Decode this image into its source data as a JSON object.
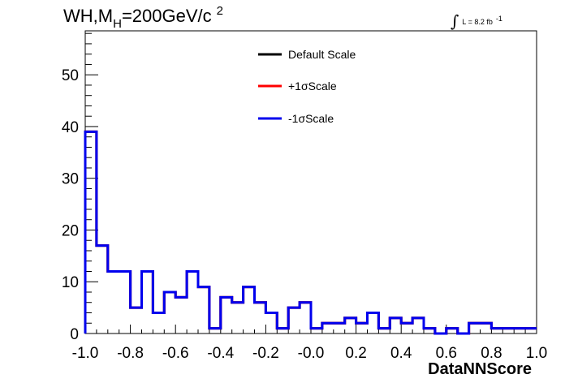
{
  "chart_data": {
    "type": "histogram",
    "title": {
      "main": "WH,M",
      "subscript": "H",
      "value": "=200GeV/c",
      "superscript": "2"
    },
    "luminosity": {
      "integral_symbol": "∫",
      "text": "L = 8.2 fb",
      "superscript": "-1"
    },
    "xlabel": "DataNNScore",
    "ylabel": "",
    "xlim": [
      -1.0,
      1.0
    ],
    "ylim": [
      0,
      58.5
    ],
    "x_ticks": [
      -1.0,
      -0.8,
      -0.6,
      -0.4,
      -0.2,
      0.0,
      0.2,
      0.4,
      0.6,
      0.8,
      1.0
    ],
    "x_tick_labels": [
      "-1.0",
      "-0.8",
      "-0.6",
      "-0.4",
      "-0.2",
      "-0.0",
      "0.2",
      "0.4",
      "0.6",
      "0.8",
      "1.0"
    ],
    "y_ticks": [
      0,
      10,
      20,
      30,
      40,
      50
    ],
    "y_tick_labels": [
      "0",
      "10",
      "20",
      "30",
      "40",
      "50"
    ],
    "bin_edges": [
      -1.0,
      -0.95,
      -0.9,
      -0.85,
      -0.8,
      -0.75,
      -0.7,
      -0.65,
      -0.6,
      -0.55,
      -0.5,
      -0.45,
      -0.4,
      -0.35,
      -0.3,
      -0.25,
      -0.2,
      -0.15,
      -0.1,
      -0.05,
      0.0,
      0.05,
      0.1,
      0.15,
      0.2,
      0.25,
      0.3,
      0.35,
      0.4,
      0.45,
      0.5,
      0.55,
      0.6,
      0.65,
      0.7,
      0.75,
      0.8,
      0.85,
      0.9,
      0.95,
      1.0
    ],
    "series": [
      {
        "name": "Default Scale",
        "color": "#000000",
        "values": [
          39,
          17,
          12,
          12,
          5,
          12,
          4,
          8,
          7,
          12,
          9,
          1,
          7,
          6,
          9,
          6,
          4,
          1,
          5,
          6,
          1,
          2,
          2,
          3,
          2,
          4,
          1,
          3,
          2,
          3,
          1,
          0,
          1,
          0,
          2,
          2,
          1,
          1,
          1,
          1
        ]
      },
      {
        "name": "+1σScale",
        "color": "#ff0000",
        "values": [
          39,
          17,
          12,
          12,
          5,
          12,
          4,
          8,
          7,
          12,
          9,
          1,
          7,
          6,
          9,
          6,
          4,
          1,
          5,
          6,
          1,
          2,
          2,
          3,
          2,
          4,
          1,
          3,
          2,
          3,
          1,
          0,
          1,
          0,
          2,
          2,
          1,
          1,
          1,
          1
        ]
      },
      {
        "name": "-1σScale",
        "color": "#0000ee",
        "values": [
          39,
          17,
          12,
          12,
          5,
          12,
          4,
          8,
          7,
          12,
          9,
          1,
          7,
          6,
          9,
          6,
          4,
          1,
          5,
          6,
          1,
          2,
          2,
          3,
          2,
          4,
          1,
          3,
          2,
          3,
          1,
          0,
          1,
          0,
          2,
          2,
          1,
          1,
          1,
          1
        ]
      }
    ],
    "legend_position": "top-center",
    "grid": false
  }
}
